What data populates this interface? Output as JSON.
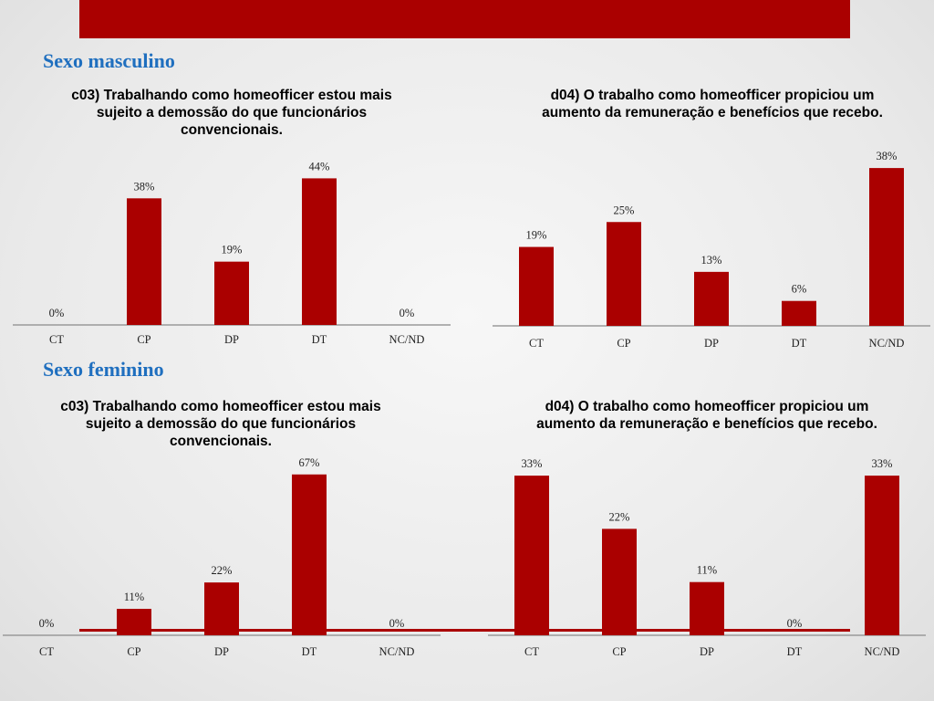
{
  "colors": {
    "accent": "#aa0000",
    "section_title": "#1f6fbf",
    "axis": "#9a9a9a"
  },
  "sections": [
    {
      "title": "Sexo masculino"
    },
    {
      "title": "Sexo feminino"
    }
  ],
  "chart_data": [
    {
      "type": "bar",
      "title": "c03) Trabalhando como homeofficer estou mais sujeito a demossão do que funcionários convencionais.",
      "categories": [
        "CT",
        "CP",
        "DP",
        "DT",
        "NC/ND"
      ],
      "values": [
        0,
        38,
        19,
        44,
        0
      ],
      "data_labels": [
        "0%",
        "38%",
        "19%",
        "44%",
        "0%"
      ],
      "ylim": [
        0,
        50
      ],
      "grid": false,
      "legend": "none"
    },
    {
      "type": "bar",
      "title": "d04) O trabalho como homeofficer propiciou um aumento da remuneração e benefícios que recebo.",
      "categories": [
        "CT",
        "CP",
        "DP",
        "DT",
        "NC/ND"
      ],
      "values": [
        19,
        25,
        13,
        6,
        38
      ],
      "data_labels": [
        "19%",
        "25%",
        "13%",
        "6%",
        "38%"
      ],
      "ylim": [
        0,
        40
      ],
      "grid": false,
      "legend": "none"
    },
    {
      "type": "bar",
      "title": "c03) Trabalhando como homeofficer estou mais sujeito a demossão do que funcionários convencionais.",
      "categories": [
        "CT",
        "CP",
        "DP",
        "DT",
        "NC/ND"
      ],
      "values": [
        0,
        11,
        22,
        67,
        0
      ],
      "data_labels": [
        "0%",
        "11%",
        "22%",
        "67%",
        "0%"
      ],
      "ylim": [
        0,
        70
      ],
      "grid": false,
      "legend": "none"
    },
    {
      "type": "bar",
      "title": "d04) O trabalho como homeofficer propiciou um aumento da remuneração e benefícios que recebo.",
      "categories": [
        "CT",
        "CP",
        "DP",
        "DT",
        "NC/ND"
      ],
      "values": [
        33,
        22,
        11,
        0,
        33
      ],
      "data_labels": [
        "33%",
        "22%",
        "11%",
        "0%",
        "33%"
      ],
      "ylim": [
        0,
        35
      ],
      "grid": false,
      "legend": "none"
    }
  ]
}
